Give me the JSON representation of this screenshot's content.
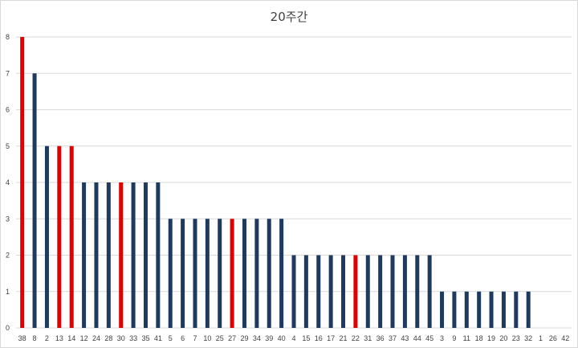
{
  "chart_data": {
    "type": "bar",
    "title": "20주간",
    "xlabel": "",
    "ylabel": "",
    "ylim": [
      0,
      8
    ],
    "yticks": [
      0,
      1,
      2,
      3,
      4,
      5,
      6,
      7,
      8
    ],
    "grid": true,
    "legend": "none",
    "colors": {
      "default": "#1f3a5f",
      "highlight": "#e00000",
      "grid": "#d9d9d9"
    },
    "categories": [
      "38",
      "8",
      "2",
      "13",
      "14",
      "12",
      "24",
      "28",
      "30",
      "33",
      "35",
      "41",
      "5",
      "6",
      "7",
      "10",
      "25",
      "27",
      "29",
      "34",
      "39",
      "40",
      "4",
      "15",
      "16",
      "17",
      "21",
      "22",
      "31",
      "36",
      "37",
      "43",
      "44",
      "45",
      "3",
      "9",
      "11",
      "18",
      "19",
      "20",
      "23",
      "32",
      "1",
      "26",
      "42"
    ],
    "values": [
      8,
      7,
      5,
      5,
      5,
      4,
      4,
      4,
      4,
      4,
      4,
      4,
      3,
      3,
      3,
      3,
      3,
      3,
      3,
      3,
      3,
      3,
      2,
      2,
      2,
      2,
      2,
      2,
      2,
      2,
      2,
      2,
      2,
      2,
      1,
      1,
      1,
      1,
      1,
      1,
      1,
      1,
      0,
      0,
      0
    ],
    "highlighted": [
      "38",
      "13",
      "14",
      "30",
      "27",
      "22"
    ]
  }
}
